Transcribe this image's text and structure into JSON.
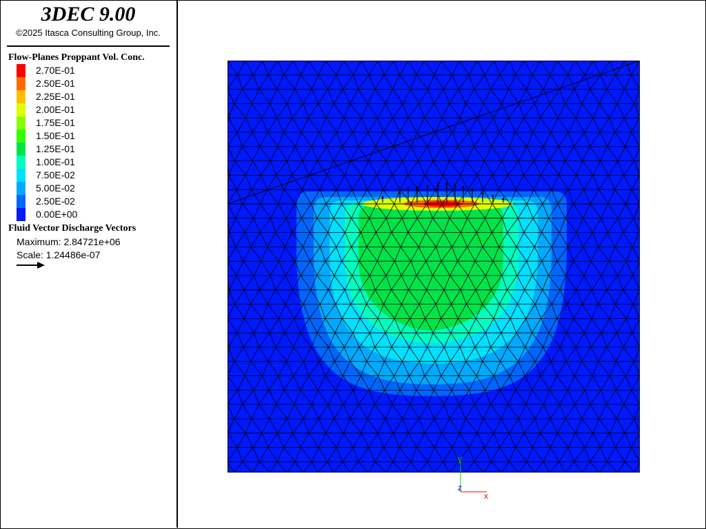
{
  "header": {
    "title": "3DEC 9.00",
    "copyright": "©2025 Itasca Consulting Group, Inc."
  },
  "legend": {
    "title": "Flow-Planes Proppant Vol. Conc.",
    "entries": [
      {
        "label": "2.70E-01",
        "color": "#ff0000"
      },
      {
        "label": "2.50E-01",
        "color": "#ff6a00"
      },
      {
        "label": "2.25E-01",
        "color": "#ffbf00"
      },
      {
        "label": "2.00E-01",
        "color": "#ddff00"
      },
      {
        "label": "1.75E-01",
        "color": "#88ff00"
      },
      {
        "label": "1.50E-01",
        "color": "#33ff00"
      },
      {
        "label": "1.25E-01",
        "color": "#00e44a"
      },
      {
        "label": "1.00E-01",
        "color": "#00ffc0"
      },
      {
        "label": "7.50E-02",
        "color": "#00e0ff"
      },
      {
        "label": "5.00E-02",
        "color": "#00aaff"
      },
      {
        "label": "2.50E-02",
        "color": "#0066ff"
      },
      {
        "label": "0.00E+00",
        "color": "#0019ff"
      }
    ]
  },
  "vectors": {
    "title": "Fluid Vector Discharge Vectors",
    "maximum": "Maximum: 2.84721e+06",
    "scale": "Scale: 1.24486e-07"
  },
  "axes": {
    "x": "x",
    "y": "y",
    "z": "z"
  },
  "colors": {
    "background": "#0019ff",
    "band_blue": "#0066ff",
    "band_lightblue": "#00aaff",
    "band_cyan": "#00e0ff",
    "band_aqua": "#00ffc0",
    "band_green": "#00e44a",
    "band_yellow": "#ddff00",
    "band_orange": "#ff6a00",
    "band_red": "#ff0000",
    "axis_x": "#ff0000",
    "axis_y": "#00cc00",
    "axis_z": "#0000ff"
  }
}
